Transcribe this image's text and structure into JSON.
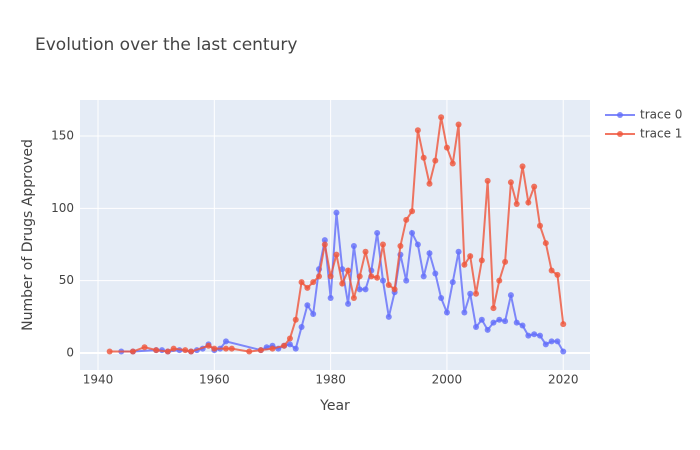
{
  "chart_data": {
    "type": "line",
    "title": "Evolution over the last century",
    "x_label": "Year",
    "y_label": "Number of Drugs Approved",
    "xlim": [
      1936.9,
      2024.6
    ],
    "xticks": [
      1940,
      1960,
      1980,
      2000,
      2020
    ],
    "ylim": [
      -11.75,
      174.9
    ],
    "yticks": [
      0,
      50,
      100,
      150
    ],
    "grid": true,
    "series": [
      {
        "name": "trace 0",
        "color": "#636efa",
        "x": [
          1944,
          1946,
          1950,
          1951,
          1952,
          1954,
          1956,
          1957,
          1958,
          1959,
          1960,
          1961,
          1962,
          1968,
          1969,
          1970,
          1971,
          1972,
          1973,
          1974,
          1975,
          1976,
          1977,
          1978,
          1979,
          1980,
          1981,
          1982,
          1983,
          1984,
          1985,
          1986,
          1987,
          1988,
          1989,
          1990,
          1991,
          1992,
          1993,
          1994,
          1995,
          1996,
          1997,
          1998,
          1999,
          2000,
          2001,
          2002,
          2003,
          2004,
          2005,
          2006,
          2007,
          2008,
          2009,
          2010,
          2011,
          2012,
          2013,
          2014,
          2015,
          2016,
          2017,
          2018,
          2019,
          2020
        ],
        "values": [
          1,
          1,
          2,
          2,
          1,
          2,
          1,
          2,
          3,
          6,
          2,
          3,
          8,
          2,
          4,
          5,
          3,
          5,
          6,
          3,
          18,
          33,
          27,
          58,
          78,
          38,
          97,
          58,
          34,
          74,
          44,
          44,
          57,
          83,
          50,
          25,
          42,
          68,
          50,
          83,
          75,
          53,
          69,
          55,
          38,
          28,
          49,
          70,
          28,
          41,
          18,
          23,
          16,
          21,
          23,
          22,
          40,
          21,
          19,
          12,
          13,
          12,
          6,
          8,
          8,
          1
        ]
      },
      {
        "name": "trace 1",
        "color": "#ef553b",
        "x": [
          1942,
          1946,
          1948,
          1950,
          1952,
          1953,
          1955,
          1956,
          1959,
          1960,
          1962,
          1963,
          1966,
          1968,
          1970,
          1972,
          1973,
          1974,
          1975,
          1976,
          1977,
          1978,
          1979,
          1980,
          1981,
          1982,
          1983,
          1984,
          1985,
          1986,
          1987,
          1988,
          1989,
          1990,
          1991,
          1992,
          1993,
          1994,
          1995,
          1996,
          1997,
          1998,
          1999,
          2000,
          2001,
          2002,
          2003,
          2004,
          2005,
          2006,
          2007,
          2008,
          2009,
          2010,
          2011,
          2012,
          2013,
          2014,
          2015,
          2016,
          2017,
          2018,
          2019,
          2020
        ],
        "values": [
          1,
          1,
          4,
          2,
          1,
          3,
          2,
          1,
          5,
          3,
          3,
          3,
          1,
          2,
          3,
          5,
          10,
          23,
          49,
          45,
          49,
          53,
          75,
          53,
          68,
          48,
          57,
          38,
          53,
          70,
          53,
          52,
          75,
          47,
          44,
          74,
          92,
          98,
          154,
          135,
          117,
          133,
          163,
          142,
          131,
          158,
          61,
          67,
          41,
          64,
          119,
          31,
          50,
          63,
          118,
          103,
          129,
          104,
          115,
          88,
          76,
          57,
          54,
          20
        ]
      }
    ]
  }
}
